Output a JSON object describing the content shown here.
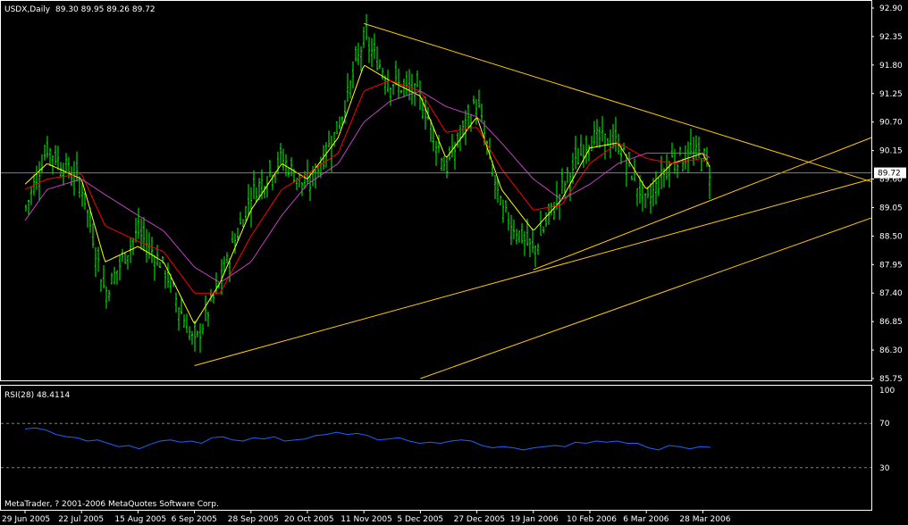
{
  "header": {
    "symbol_label": "USDX,Daily",
    "ohlc_label": "89.30 89.95 89.26 89.72"
  },
  "current_price_label": "89.72",
  "rsi_label": "RSI(28) 48.4114",
  "copyright": "MetaTrader, ? 2001-2006 MetaQuotes Software Corp.",
  "colors": {
    "background": "#000000",
    "frame": "#ffffff",
    "bars": "#00ff00",
    "ma_fast": "#ffff00",
    "ma_mid": "#ff0000",
    "ma_slow": "#c040c0",
    "trendlines": "#ffcc00",
    "price_line": "#808080",
    "rsi_line": "#2060ff",
    "rsi_levels": "#808080",
    "price_box": "#ffffff",
    "price_box_text": "#000000"
  },
  "chart_data": [
    {
      "type": "ohlc",
      "symbol": "USDX",
      "timeframe": "Daily",
      "ylim": [
        85.75,
        92.9
      ],
      "y_ticks": [
        "92.90",
        "92.35",
        "91.80",
        "91.25",
        "90.70",
        "90.15",
        "89.60",
        "89.05",
        "88.50",
        "87.95",
        "87.40",
        "86.85",
        "86.30",
        "85.75"
      ],
      "x_ticks": [
        "29 Jun 2005",
        "22 Jul 2005",
        "15 Aug 2005",
        "6 Sep 2005",
        "28 Sep 2005",
        "20 Oct 2005",
        "11 Nov 2005",
        "5 Dec 2005",
        "27 Dec 2005",
        "19 Jan 2006",
        "10 Feb 2006",
        "6 Mar 2006",
        "28 Mar 2006"
      ],
      "last": {
        "open": 89.3,
        "high": 89.95,
        "low": 89.26,
        "close": 89.72
      },
      "close_path": {
        "dates": [
          "29 Jun 2005",
          "8 Jul 2005",
          "22 Jul 2005",
          "1 Aug 2005",
          "15 Aug 2005",
          "25 Aug 2005",
          "6 Sep 2005",
          "16 Sep 2005",
          "28 Sep 2005",
          "10 Oct 2005",
          "20 Oct 2005",
          "1 Nov 2005",
          "11 Nov 2005",
          "22 Nov 2005",
          "5 Dec 2005",
          "15 Dec 2005",
          "27 Dec 2005",
          "6 Jan 2006",
          "19 Jan 2006",
          "30 Jan 2006",
          "10 Feb 2006",
          "22 Feb 2006",
          "6 Mar 2006",
          "16 Mar 2006",
          "28 Mar 2006",
          "31 Mar 2006"
        ],
        "values": [
          89.0,
          90.2,
          89.5,
          87.4,
          88.6,
          87.9,
          86.4,
          87.6,
          89.3,
          90.0,
          89.4,
          90.6,
          92.3,
          91.5,
          91.2,
          89.8,
          91.1,
          89.0,
          88.2,
          89.4,
          90.4,
          90.3,
          89.1,
          90.0,
          90.1,
          89.72
        ]
      },
      "moving_averages": [
        {
          "values": [
            89.5,
            89.9,
            89.6,
            88.0,
            88.3,
            88.0,
            86.8,
            87.6,
            89.0,
            89.9,
            89.6,
            90.4,
            91.8,
            91.5,
            91.2,
            90.0,
            90.8,
            89.4,
            88.6,
            89.2,
            90.2,
            90.3,
            89.4,
            89.9,
            90.1,
            89.8
          ]
        },
        {
          "values": [
            89.4,
            89.6,
            89.7,
            88.7,
            88.4,
            88.2,
            87.4,
            87.4,
            88.5,
            89.4,
            89.7,
            90.1,
            91.3,
            91.5,
            91.3,
            90.5,
            90.6,
            89.8,
            89.0,
            89.1,
            89.9,
            90.3,
            90.0,
            89.9,
            90.0,
            89.9
          ]
        },
        {
          "values": [
            88.8,
            89.4,
            89.6,
            89.3,
            88.9,
            88.6,
            87.9,
            87.6,
            88.0,
            88.9,
            89.5,
            89.9,
            90.7,
            91.1,
            91.3,
            91.0,
            90.8,
            90.3,
            89.6,
            89.2,
            89.5,
            89.9,
            90.1,
            90.1,
            90.1,
            90.0
          ]
        }
      ],
      "trendlines": [
        {
          "from": [
            "11 Nov 2005",
            92.6
          ],
          "to": [
            "end",
            89.55
          ]
        },
        {
          "from": [
            "6 Sep 2005",
            86.0
          ],
          "to": [
            "end",
            89.6
          ]
        },
        {
          "from": [
            "19 Jan 2006",
            87.85
          ],
          "to": [
            "end",
            90.4
          ]
        },
        {
          "from": [
            "5 Dec 2005",
            85.75
          ],
          "to": [
            "end",
            88.85
          ]
        }
      ],
      "current_price": 89.72
    },
    {
      "type": "line",
      "name": "RSI(28)",
      "ylim": [
        0,
        100
      ],
      "y_ticks": [
        "100",
        "70",
        "30"
      ],
      "levels": [
        70,
        30
      ],
      "last_value": 48.4114,
      "values": [
        65,
        66,
        64,
        60,
        58,
        57,
        54,
        55,
        52,
        49,
        50,
        47,
        51,
        54,
        55,
        53,
        54,
        52,
        57,
        58,
        55,
        54,
        57,
        56,
        58,
        54,
        55,
        56,
        59,
        60,
        62,
        60,
        61,
        59,
        55,
        56,
        57,
        54,
        52,
        53,
        52,
        54,
        55,
        54,
        50,
        48,
        49,
        48,
        46,
        48,
        49,
        50,
        49,
        53,
        52,
        54,
        53,
        54,
        52,
        52,
        48,
        46,
        50,
        49,
        47,
        49,
        48.4
      ]
    }
  ]
}
